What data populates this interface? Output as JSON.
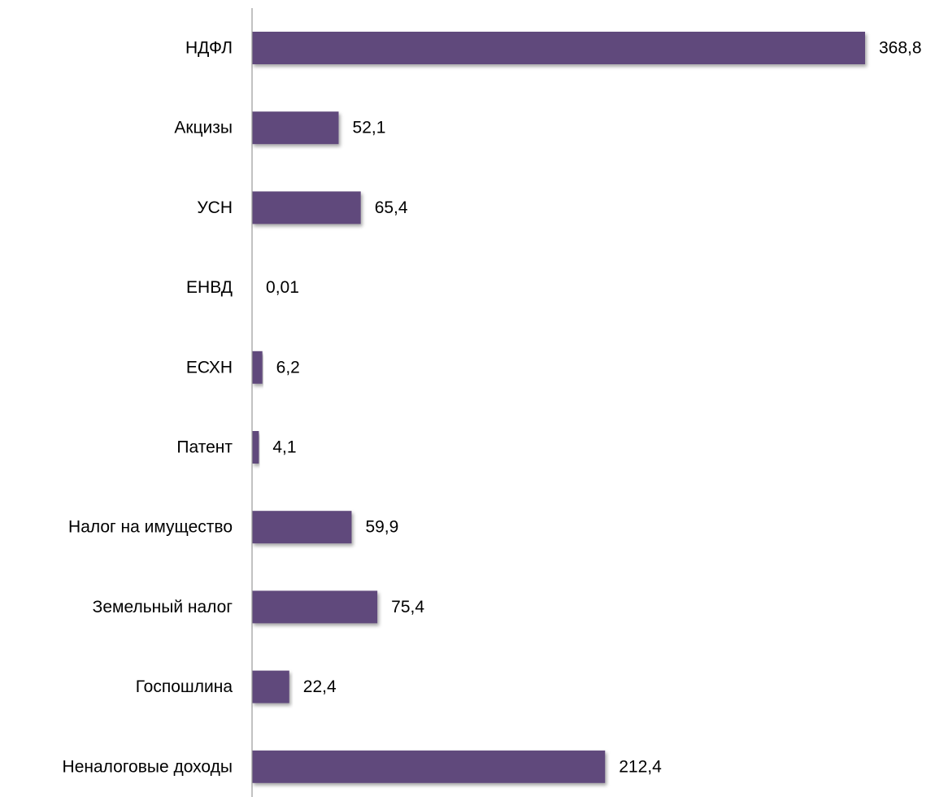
{
  "chart_data": {
    "type": "bar",
    "orientation": "horizontal",
    "categories": [
      "НДФЛ",
      "Акцизы",
      "УСН",
      "ЕНВД",
      "ЕСХН",
      "Патент",
      "Налог на имущество",
      "Земельный налог",
      "Госпошлина",
      "Неналоговые доходы"
    ],
    "values": [
      368.8,
      52.1,
      65.4,
      0.01,
      6.2,
      4.1,
      59.9,
      75.4,
      22.4,
      212.4
    ],
    "value_labels": [
      "368,8",
      "52,1",
      "65,4",
      "0,01",
      "6,2",
      "4,1",
      "59,9",
      "75,4",
      "22,4",
      "212,4"
    ],
    "title": "",
    "xlabel": "",
    "ylabel": "",
    "xlim": [
      0,
      368.8
    ],
    "grid": false,
    "legend": "none",
    "bar_color": "#614a7b",
    "axis_color": "#999999"
  }
}
